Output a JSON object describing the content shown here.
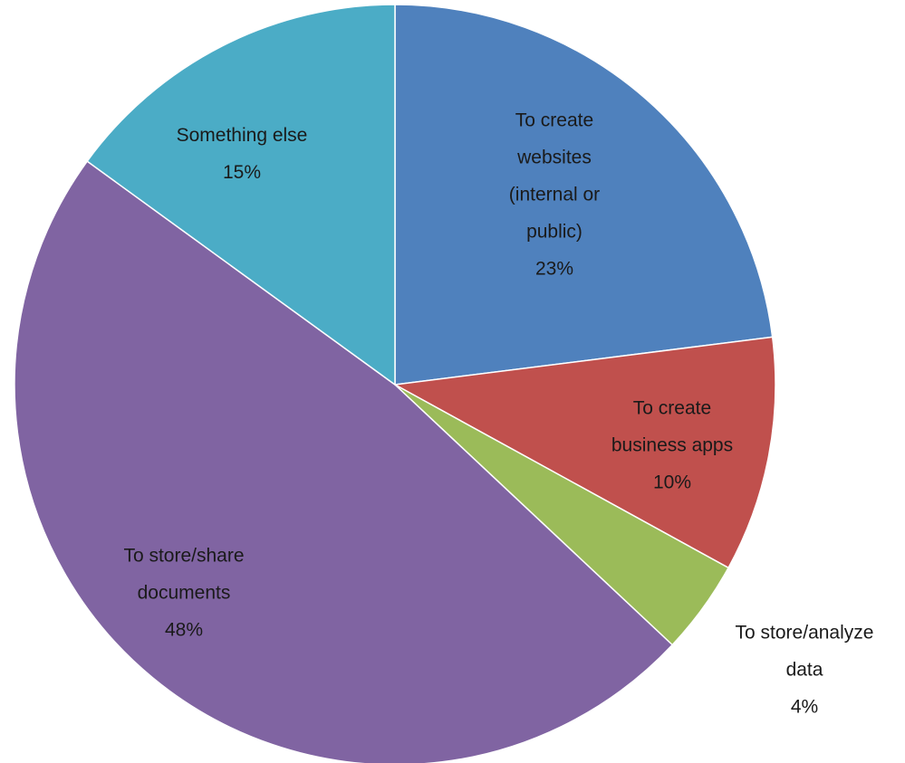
{
  "chart_data": {
    "type": "pie",
    "categories": [
      "To create websites (internal or public)",
      "To create business apps",
      "To store/analyze data",
      "To store/share documents",
      "Something else"
    ],
    "values": [
      23,
      10,
      4,
      48,
      15
    ],
    "value_labels": [
      "23%",
      "10%",
      "4%",
      "48%",
      "15%"
    ],
    "colors": [
      "#4f81bd",
      "#c0504d",
      "#9bbb59",
      "#8064a2",
      "#4bacc6"
    ]
  }
}
